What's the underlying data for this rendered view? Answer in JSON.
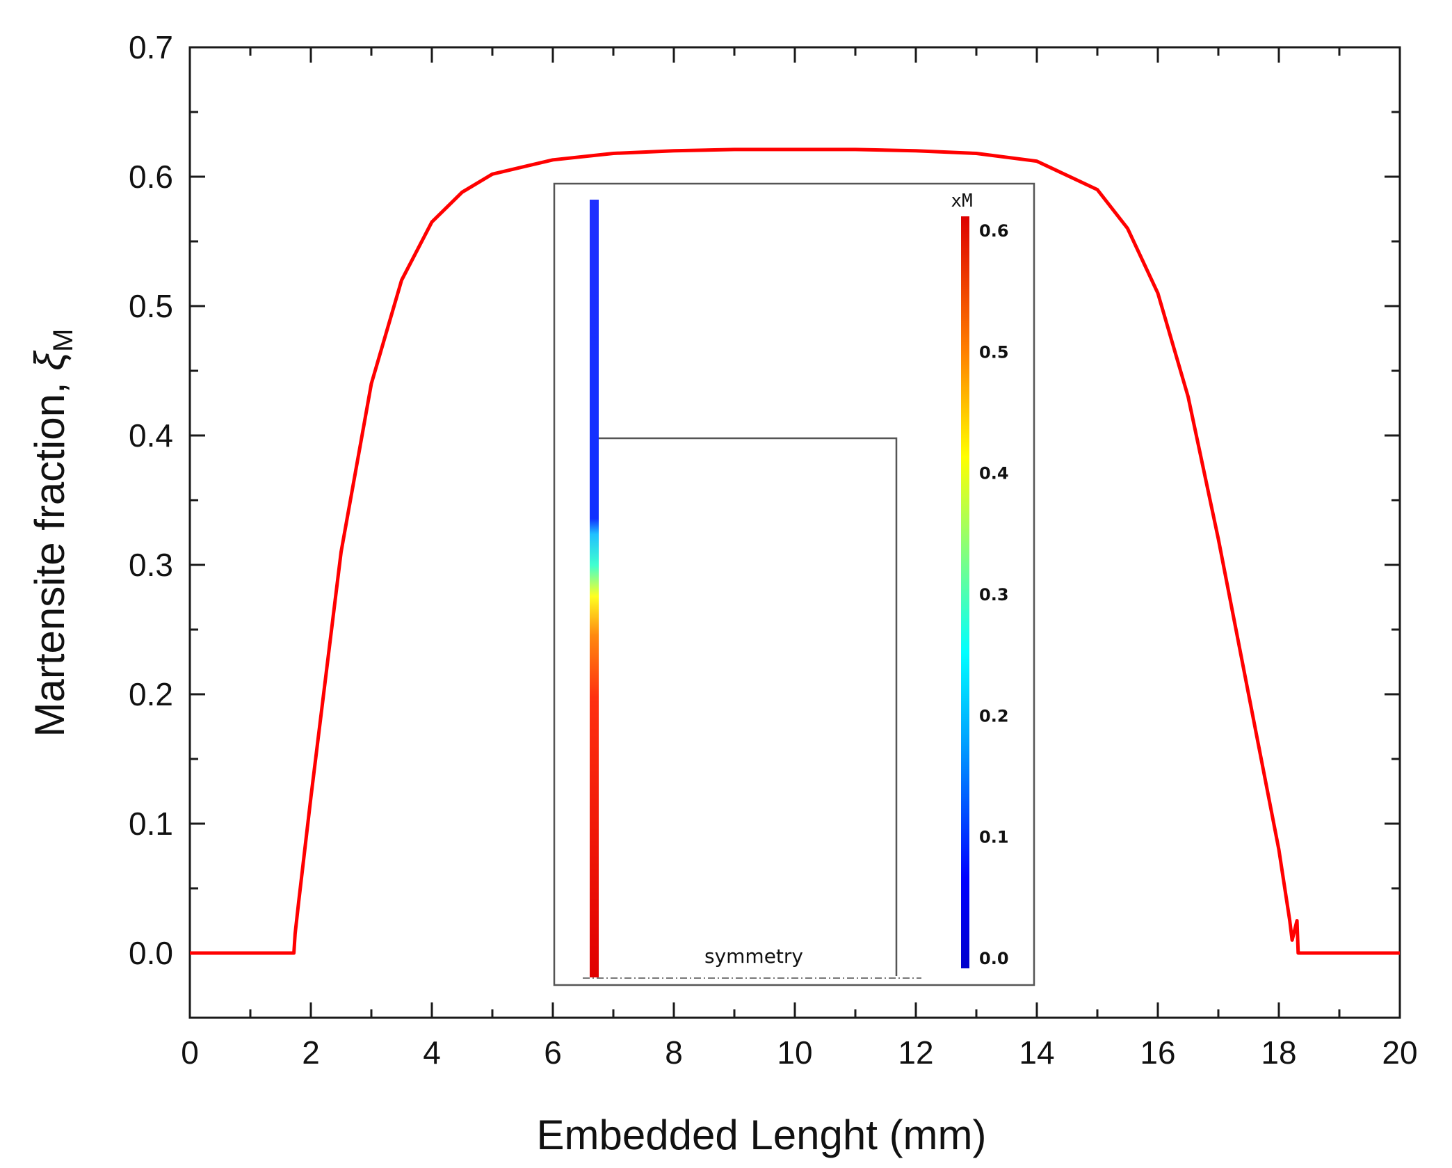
{
  "chart_data": {
    "type": "line",
    "title": "",
    "xlabel": "Embedded Lenght (mm)",
    "ylabel_main": "Martensite fraction, ",
    "ylabel_symbol": "ξ",
    "ylabel_subscript": "M",
    "xlim": [
      0,
      20
    ],
    "ylim": [
      -0.05,
      0.7
    ],
    "x_ticks": [
      "0",
      "2",
      "4",
      "6",
      "8",
      "10",
      "12",
      "14",
      "16",
      "18",
      "20"
    ],
    "y_ticks": [
      "0.0",
      "0.1",
      "0.2",
      "0.3",
      "0.4",
      "0.5",
      "0.6",
      "0.7"
    ],
    "series": [
      {
        "name": "Martensite fraction",
        "color": "#ff0000",
        "x": [
          0,
          1.72,
          1.74,
          1.8,
          2.0,
          2.5,
          3.0,
          3.5,
          4.0,
          4.5,
          5.0,
          6.0,
          7.0,
          8.0,
          9.0,
          10.0,
          11.0,
          12.0,
          13.0,
          14.0,
          15.0,
          15.5,
          16.0,
          16.5,
          17.0,
          17.5,
          18.0,
          18.18,
          18.22,
          18.3,
          18.32,
          18.38,
          20.0
        ],
        "y": [
          0.0,
          0.0,
          0.015,
          0.04,
          0.12,
          0.31,
          0.44,
          0.52,
          0.565,
          0.588,
          0.602,
          0.613,
          0.618,
          0.62,
          0.621,
          0.621,
          0.621,
          0.62,
          0.618,
          0.612,
          0.59,
          0.56,
          0.51,
          0.43,
          0.32,
          0.2,
          0.08,
          0.025,
          0.01,
          0.025,
          0.0,
          0.0,
          0.0
        ]
      }
    ],
    "inset": {
      "colorbar_title": "xM",
      "colorbar_ticks": [
        "0.0",
        "0.1",
        "0.2",
        "0.3",
        "0.4",
        "0.5",
        "0.6"
      ],
      "label": "symmetry"
    }
  }
}
